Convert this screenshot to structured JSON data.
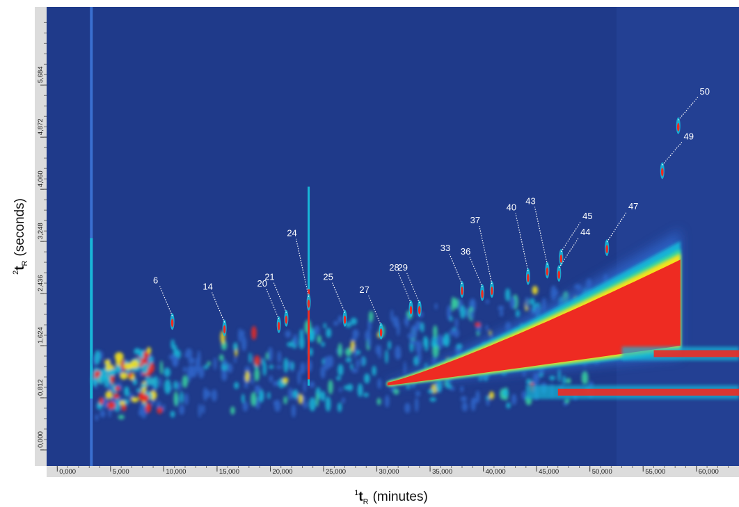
{
  "chart_data": {
    "type": "heatmap",
    "title": "",
    "xlabel": "(minutes)",
    "xlabel_symbol": "t",
    "xlabel_sup": "1",
    "xlabel_sub": "R",
    "ylabel": "(seconds)",
    "ylabel_symbol": "t",
    "ylabel_sup": "2",
    "ylabel_sub": "R",
    "xlim": [
      -1.0,
      64.0
    ],
    "ylim": [
      -0.25,
      6.9
    ],
    "x_ticks": [
      0,
      5,
      10,
      15,
      20,
      25,
      30,
      35,
      40,
      45,
      50,
      55,
      60
    ],
    "x_tick_labels": [
      "0,000",
      "5,000",
      "10,000",
      "15,000",
      "20,000",
      "25,000",
      "30,000",
      "35,000",
      "40,000",
      "45,000",
      "50,000",
      "55,000",
      "60,000"
    ],
    "y_ticks": [
      0.0,
      0.812,
      1.624,
      2.436,
      3.248,
      4.06,
      4.872,
      5.684
    ],
    "y_tick_labels": [
      "0,000",
      "0,812",
      "1,624",
      "2,436",
      "3,248",
      "4,060",
      "4,872",
      "5,684"
    ],
    "colors": {
      "background": "#1f3a8a",
      "low": "#2e64c8",
      "mid": "#18b7d8",
      "mid_high": "#38d6a0",
      "high": "#f4e11c",
      "peak": "#ee2b22"
    },
    "bands": [
      {
        "name": "main-hump",
        "x": [
          31.0,
          58.5
        ],
        "y_low_start": 1.0,
        "y_high_start": 1.05,
        "y_low_end": 1.55,
        "y_high_end": 3.0
      },
      {
        "name": "lower-ridge-1",
        "x": [
          53,
          64
        ],
        "y": 1.5
      },
      {
        "name": "lower-ridge-2",
        "x": [
          44,
          64
        ],
        "y": 0.9
      }
    ],
    "peaks": [
      {
        "label": "6",
        "x": 10.8,
        "y": 2.0
      },
      {
        "label": "14",
        "x": 15.7,
        "y": 1.9
      },
      {
        "label": "20",
        "x": 20.8,
        "y": 1.95
      },
      {
        "label": "21",
        "x": 21.5,
        "y": 2.05
      },
      {
        "label": "24",
        "x": 23.6,
        "y": 2.3
      },
      {
        "label": "25",
        "x": 27.0,
        "y": 2.05
      },
      {
        "label": "27",
        "x": 30.4,
        "y": 1.85
      },
      {
        "label": "28",
        "x": 33.2,
        "y": 2.2
      },
      {
        "label": "29",
        "x": 34.0,
        "y": 2.2
      },
      {
        "label": "33",
        "x": 38.0,
        "y": 2.5
      },
      {
        "label": "36",
        "x": 39.9,
        "y": 2.45
      },
      {
        "label": "37",
        "x": 40.8,
        "y": 2.5
      },
      {
        "label": "40",
        "x": 44.2,
        "y": 2.7
      },
      {
        "label": "43",
        "x": 46.0,
        "y": 2.8
      },
      {
        "label": "44",
        "x": 47.1,
        "y": 2.75
      },
      {
        "label": "45",
        "x": 47.3,
        "y": 3.0
      },
      {
        "label": "47",
        "x": 51.6,
        "y": 3.15
      },
      {
        "label": "49",
        "x": 56.8,
        "y": 4.35
      },
      {
        "label": "50",
        "x": 58.3,
        "y": 5.05
      }
    ]
  }
}
